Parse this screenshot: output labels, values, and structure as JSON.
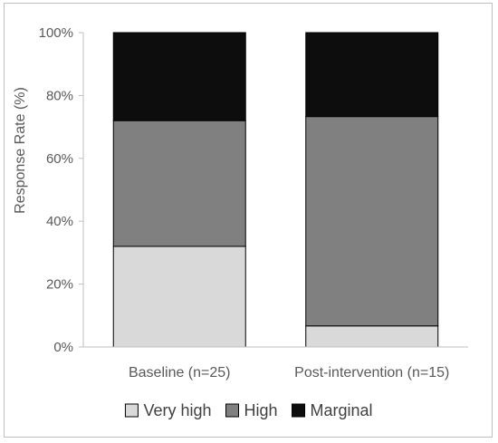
{
  "chart_data": {
    "type": "bar",
    "stacked": true,
    "percent": true,
    "categories": [
      "Baseline (n=25)",
      "Post-intervention (n=15)"
    ],
    "series": [
      {
        "name": "Very high",
        "values": [
          32,
          6.7
        ],
        "color": "#d9d9d9"
      },
      {
        "name": "High",
        "values": [
          40,
          66.6
        ],
        "color": "#808080"
      },
      {
        "name": "Marginal",
        "values": [
          28,
          26.7
        ],
        "color": "#0d0d0d"
      }
    ],
    "title": "",
    "xlabel": "",
    "ylabel": "Response Rate (%)",
    "ylim": [
      0,
      100
    ],
    "yticks": [
      0,
      20,
      40,
      60,
      80,
      100
    ],
    "ytick_labels": [
      "0%",
      "20%",
      "40%",
      "60%",
      "80%",
      "100%"
    ],
    "grid": false,
    "legend_position": "bottom"
  }
}
